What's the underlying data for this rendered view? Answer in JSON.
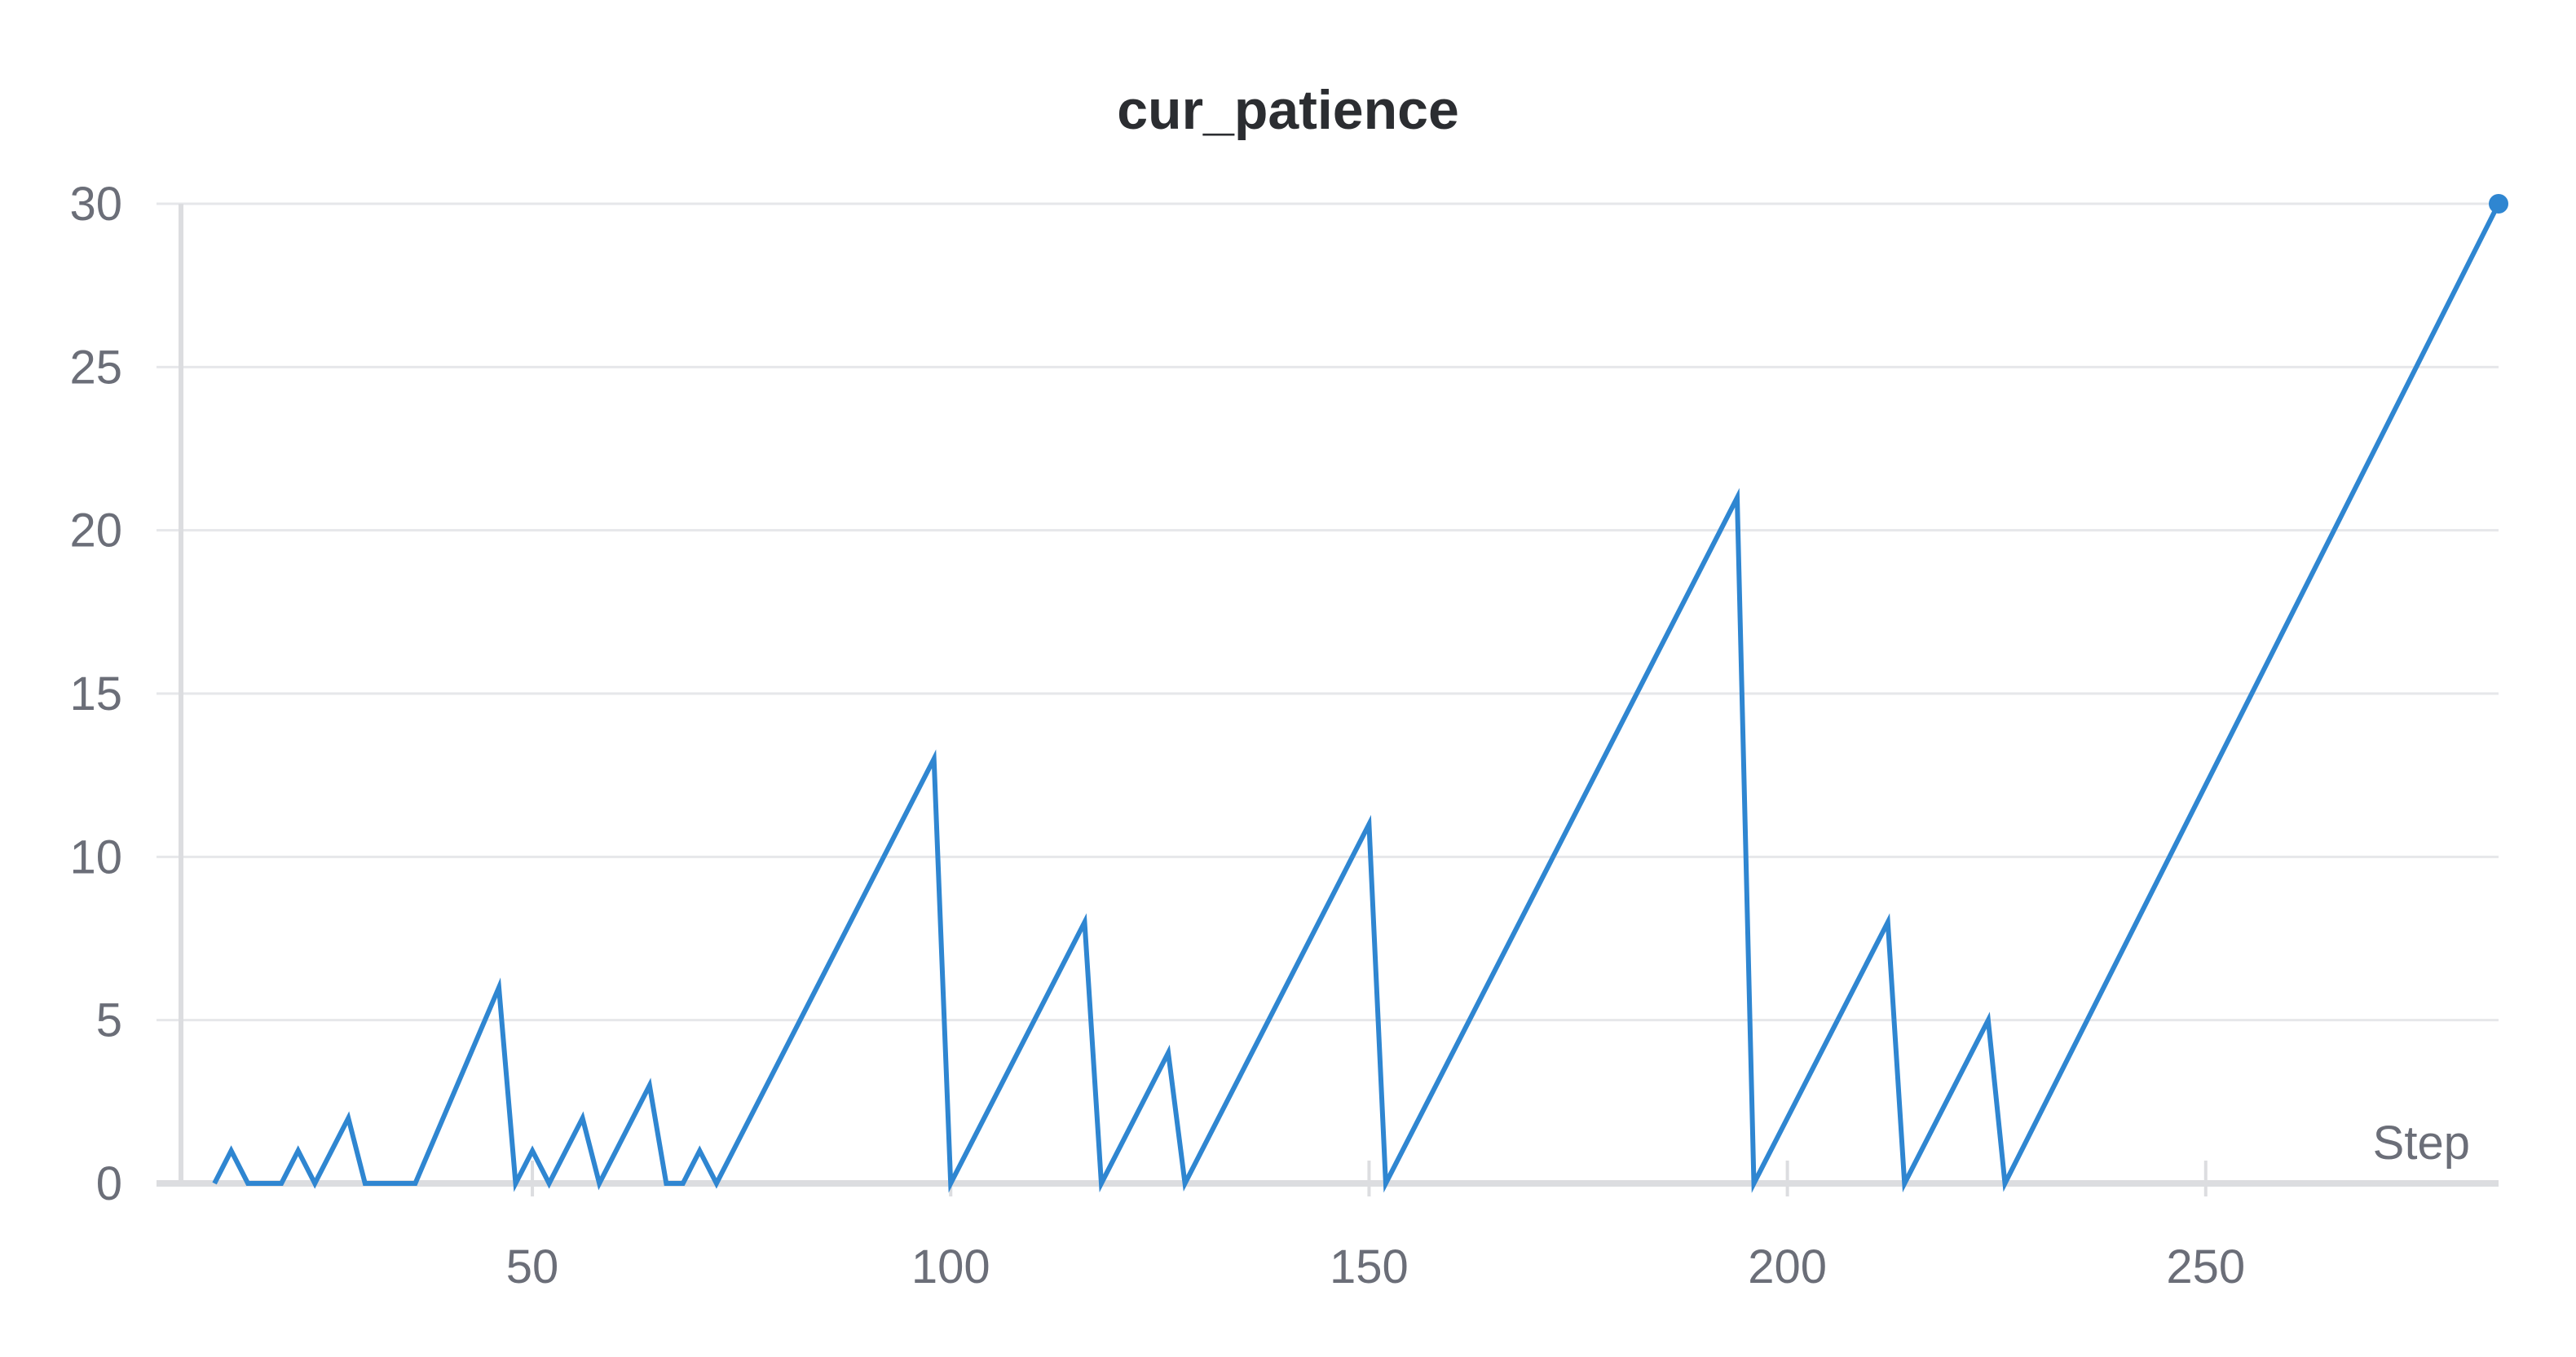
{
  "chart_data": {
    "type": "line",
    "title": "cur_patience",
    "xlabel": "Step",
    "ylabel": "",
    "xlim": [
      8,
      285
    ],
    "ylim": [
      0,
      30
    ],
    "xticks": [
      50,
      100,
      150,
      200,
      250
    ],
    "yticks": [
      0,
      5,
      10,
      15,
      20,
      25,
      30
    ],
    "grid": true,
    "legend": "none",
    "colors": {
      "series": "#2f86d1",
      "grid": "#e6e7ea",
      "axis": "#dcdde0"
    },
    "series": [
      {
        "x": [
          12,
          14,
          16,
          20,
          22,
          24,
          28,
          30,
          32,
          36,
          46,
          48,
          50,
          52,
          56,
          58,
          64,
          66,
          68,
          70,
          72,
          98,
          100,
          116,
          118,
          126,
          128,
          150,
          152,
          194,
          196,
          212,
          214,
          224,
          226,
          285
        ],
        "y": [
          0,
          1,
          0,
          0,
          1,
          0,
          2,
          0,
          0,
          0,
          6,
          0,
          1,
          0,
          2,
          0,
          3,
          0,
          0,
          1,
          0,
          13,
          0,
          8,
          0,
          4,
          0,
          11,
          0,
          21,
          0,
          8,
          0,
          5,
          0,
          30
        ]
      }
    ]
  }
}
